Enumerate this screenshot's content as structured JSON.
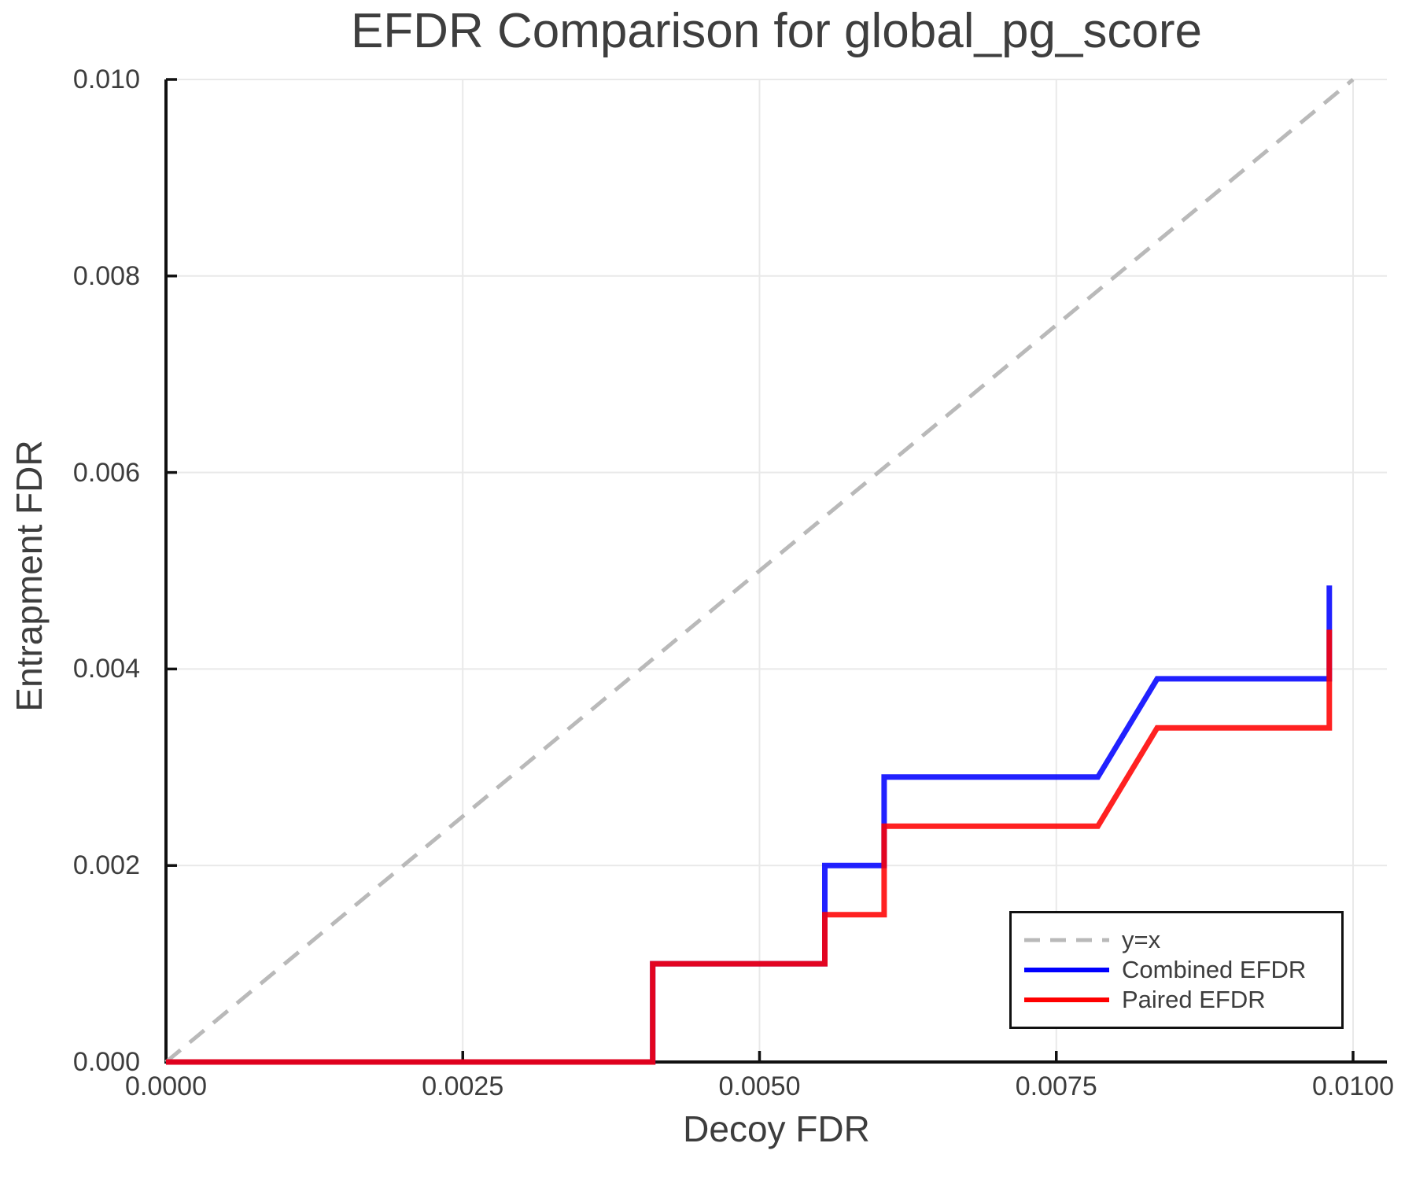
{
  "chart_data": {
    "type": "line",
    "title": "EFDR Comparison for global_pg_score",
    "xlabel": "Decoy FDR",
    "ylabel": "Entrapment FDR",
    "xlim": [
      0,
      0.010285
    ],
    "ylim": [
      0,
      0.01
    ],
    "grid": true,
    "legend_position": "lower right",
    "x_ticks": {
      "values": [
        0.0,
        0.0025,
        0.005,
        0.0075,
        0.01
      ],
      "labels": [
        "0.0000",
        "0.0025",
        "0.0050",
        "0.0075",
        "0.0100"
      ]
    },
    "y_ticks": {
      "values": [
        0.0,
        0.002,
        0.004,
        0.006,
        0.008,
        0.01
      ],
      "labels": [
        "0.000",
        "0.002",
        "0.004",
        "0.006",
        "0.008",
        "0.010"
      ]
    },
    "colors": {
      "identity_line": "#b9b9b9",
      "combined": "#0000ff",
      "paired": "#ff0000",
      "grid": "#e9e9e9",
      "axis": "#111111",
      "text": "#3d3d3d"
    },
    "series": [
      {
        "name": "y=x",
        "style": "dashed",
        "color": "#b9b9b9",
        "points": [
          [
            0.0,
            0.0
          ],
          [
            0.01,
            0.01
          ]
        ]
      },
      {
        "name": "Combined EFDR",
        "style": "solid",
        "color": "#0000ff",
        "points": [
          [
            0.0,
            0.0
          ],
          [
            0.0041,
            0.0
          ],
          [
            0.0041,
            0.001
          ],
          [
            0.00555,
            0.001
          ],
          [
            0.00555,
            0.002
          ],
          [
            0.00605,
            0.002
          ],
          [
            0.00605,
            0.0029
          ],
          [
            0.00785,
            0.0029
          ],
          [
            0.00835,
            0.0039
          ],
          [
            0.0098,
            0.0039
          ],
          [
            0.0098,
            0.00485
          ]
        ]
      },
      {
        "name": "Paired EFDR",
        "style": "solid",
        "color": "#ff0000",
        "points": [
          [
            0.0,
            0.0
          ],
          [
            0.0041,
            0.0
          ],
          [
            0.0041,
            0.001
          ],
          [
            0.00555,
            0.001
          ],
          [
            0.00555,
            0.0015
          ],
          [
            0.00605,
            0.0015
          ],
          [
            0.00605,
            0.0024
          ],
          [
            0.00785,
            0.0024
          ],
          [
            0.00835,
            0.0034
          ],
          [
            0.0098,
            0.0034
          ],
          [
            0.0098,
            0.0044
          ]
        ]
      }
    ]
  }
}
